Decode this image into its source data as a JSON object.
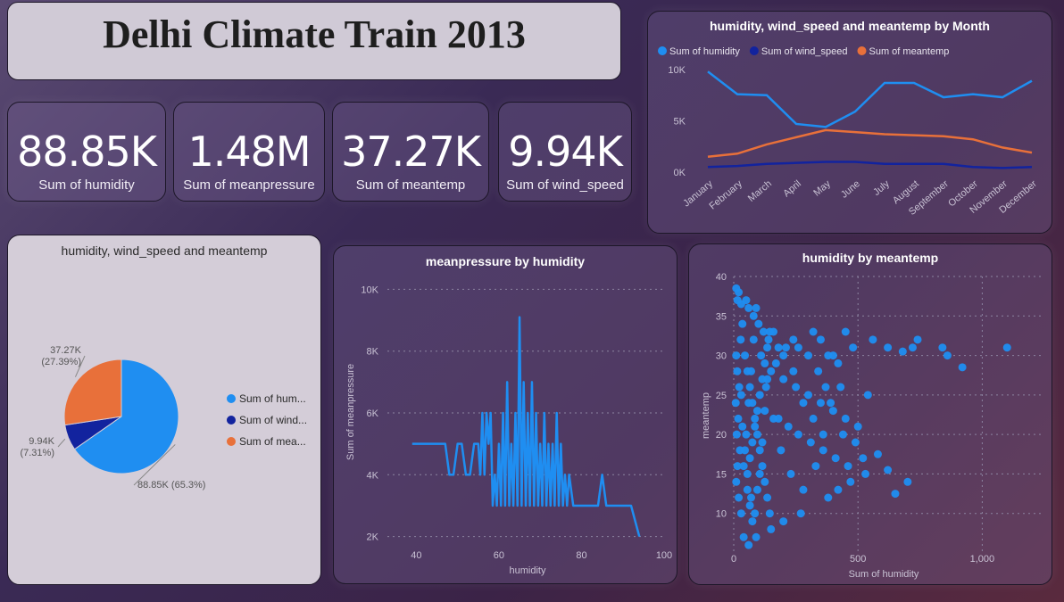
{
  "dashboard": {
    "title": "Delhi Climate Train 2013"
  },
  "kpis": [
    {
      "value": "88.85K",
      "label": "Sum of humidity"
    },
    {
      "value": "1.48M",
      "label": "Sum of meanpressure"
    },
    {
      "value": "37.27K",
      "label": "Sum of meantemp"
    },
    {
      "value": "9.94K",
      "label": "Sum of wind_speed"
    }
  ],
  "colors": {
    "humidity": "#1f8ef1",
    "wind_speed": "#12239e",
    "meantemp": "#e8703a"
  },
  "chart_data": [
    {
      "type": "line",
      "title": "humidity, wind_speed and meantemp by Month",
      "categories": [
        "January",
        "February",
        "March",
        "April",
        "May",
        "June",
        "July",
        "August",
        "September",
        "October",
        "November",
        "December"
      ],
      "series": [
        {
          "name": "Sum of humidity",
          "values": [
            9800,
            7600,
            7500,
            4700,
            4400,
            5900,
            8700,
            8700,
            7300,
            7600,
            7300,
            8900
          ]
        },
        {
          "name": "Sum of wind_speed",
          "values": [
            500,
            600,
            800,
            900,
            1000,
            1000,
            800,
            800,
            800,
            500,
            400,
            500
          ]
        },
        {
          "name": "Sum of meantemp",
          "values": [
            1500,
            1800,
            2700,
            3400,
            4100,
            3900,
            3700,
            3600,
            3500,
            3200,
            2400,
            1900
          ]
        }
      ],
      "yticks": [
        "0K",
        "5K",
        "10K"
      ],
      "ylim": [
        0,
        10000
      ]
    },
    {
      "type": "pie",
      "title": "humidity, wind_speed and meantemp",
      "slices": [
        {
          "name": "Sum of hum...",
          "value": 88.85,
          "label": "88.85K (65.3%)"
        },
        {
          "name": "Sum of wind...",
          "value": 9.94,
          "label": "9.94K (7.31%)"
        },
        {
          "name": "Sum of mea...",
          "value": 37.27,
          "label": "37.27K (27.39%)"
        }
      ]
    },
    {
      "type": "line",
      "title": "meanpressure by humidity",
      "xlabel": "humidity",
      "ylabel": "Sum of meanpressure",
      "xlim": [
        33,
        100
      ],
      "ylim": [
        1700,
        10300
      ],
      "xticks": [
        "40",
        "60",
        "80",
        "100"
      ],
      "yticks": [
        "2K",
        "4K",
        "6K",
        "8K",
        "10K"
      ],
      "x": [
        39,
        47,
        48,
        49,
        50,
        51,
        52,
        53,
        54,
        55,
        55.5,
        56,
        56.5,
        57,
        57.5,
        58,
        58.5,
        59,
        59.5,
        60,
        60.5,
        61,
        61.5,
        62,
        62.5,
        63,
        63.5,
        64,
        64.5,
        65,
        65.5,
        66,
        66.5,
        67,
        67.5,
        68,
        68.5,
        69,
        69.5,
        70,
        70.5,
        71,
        71.5,
        72,
        72.5,
        73,
        73.5,
        74,
        74.5,
        75,
        75.5,
        76,
        76.5,
        77,
        78,
        79,
        80,
        84,
        85,
        86,
        91,
        92,
        93,
        94
      ],
      "y": [
        5000,
        5000,
        4000,
        4000,
        5000,
        5000,
        4000,
        4000,
        5000,
        5000,
        4000,
        6000,
        4000,
        6000,
        5000,
        6000,
        3000,
        4000,
        3000,
        5000,
        3000,
        6000,
        3000,
        7000,
        3000,
        5000,
        3000,
        6000,
        3000,
        9100,
        3000,
        7000,
        3000,
        6000,
        3000,
        7000,
        3000,
        6000,
        3000,
        5000,
        3000,
        6000,
        3000,
        5000,
        3000,
        5000,
        3000,
        6000,
        3000,
        5000,
        3000,
        4000,
        3000,
        4000,
        3000,
        3000,
        3000,
        3000,
        4000,
        3000,
        3000,
        3000,
        2500,
        2000
      ]
    },
    {
      "type": "scatter",
      "title": "humidity by meantemp",
      "xlabel": "Sum of humidity",
      "ylabel": "meantemp",
      "xlim": [
        0,
        1250
      ],
      "ylim": [
        5,
        40
      ],
      "xticks": [
        "0",
        "500",
        "1,000"
      ],
      "yticks": [
        "10",
        "15",
        "20",
        "25",
        "30",
        "35",
        "40"
      ],
      "points": [
        [
          10,
          38.5
        ],
        [
          20,
          38
        ],
        [
          15,
          37
        ],
        [
          30,
          36.5
        ],
        [
          50,
          37
        ],
        [
          60,
          36
        ],
        [
          80,
          35
        ],
        [
          100,
          34
        ],
        [
          120,
          33
        ],
        [
          140,
          32
        ],
        [
          160,
          33
        ],
        [
          180,
          31
        ],
        [
          200,
          30
        ],
        [
          240,
          32
        ],
        [
          260,
          31
        ],
        [
          300,
          30
        ],
        [
          320,
          33
        ],
        [
          350,
          32
        ],
        [
          380,
          30
        ],
        [
          420,
          29
        ],
        [
          450,
          33
        ],
        [
          480,
          31
        ],
        [
          560,
          32
        ],
        [
          620,
          31
        ],
        [
          680,
          30.5
        ],
        [
          720,
          31
        ],
        [
          740,
          32
        ],
        [
          840,
          31
        ],
        [
          860,
          30
        ],
        [
          920,
          28.5
        ],
        [
          1100,
          31
        ],
        [
          150,
          28
        ],
        [
          200,
          27
        ],
        [
          250,
          26
        ],
        [
          300,
          25
        ],
        [
          350,
          24
        ],
        [
          400,
          23
        ],
        [
          450,
          22
        ],
        [
          500,
          21
        ],
        [
          180,
          22
        ],
        [
          220,
          21
        ],
        [
          260,
          20
        ],
        [
          310,
          19
        ],
        [
          360,
          18
        ],
        [
          410,
          17
        ],
        [
          460,
          16
        ],
        [
          520,
          17
        ],
        [
          580,
          17.5
        ],
        [
          620,
          15.5
        ],
        [
          700,
          14
        ],
        [
          650,
          12.5
        ],
        [
          530,
          15
        ],
        [
          470,
          14
        ],
        [
          420,
          13
        ],
        [
          380,
          12
        ],
        [
          270,
          10
        ],
        [
          200,
          9
        ],
        [
          150,
          8
        ],
        [
          90,
          7
        ],
        [
          60,
          6
        ],
        [
          40,
          7
        ],
        [
          30,
          10
        ],
        [
          20,
          12
        ],
        [
          10,
          14
        ],
        [
          15,
          16
        ],
        [
          25,
          18
        ],
        [
          12,
          20
        ],
        [
          18,
          22
        ],
        [
          8,
          24
        ],
        [
          22,
          26
        ],
        [
          14,
          28
        ],
        [
          10,
          30
        ],
        [
          28,
          32
        ],
        [
          35,
          34
        ],
        [
          45,
          30
        ],
        [
          55,
          28
        ],
        [
          65,
          26
        ],
        [
          75,
          24
        ],
        [
          85,
          22
        ],
        [
          95,
          20
        ],
        [
          105,
          18
        ],
        [
          115,
          16
        ],
        [
          125,
          14
        ],
        [
          135,
          12
        ],
        [
          145,
          10
        ],
        [
          55,
          15
        ],
        [
          65,
          17
        ],
        [
          75,
          19
        ],
        [
          85,
          21
        ],
        [
          95,
          23
        ],
        [
          105,
          25
        ],
        [
          115,
          27
        ],
        [
          125,
          29
        ],
        [
          135,
          31
        ],
        [
          145,
          33
        ],
        [
          70,
          12
        ],
        [
          40,
          16
        ],
        [
          50,
          20
        ],
        [
          60,
          24
        ],
        [
          70,
          28
        ],
        [
          80,
          32
        ],
        [
          90,
          36
        ],
        [
          110,
          30
        ],
        [
          130,
          26
        ],
        [
          160,
          22
        ],
        [
          190,
          18
        ],
        [
          230,
          15
        ],
        [
          280,
          13
        ],
        [
          330,
          16
        ],
        [
          360,
          20
        ],
        [
          390,
          24
        ],
        [
          430,
          26
        ],
        [
          30,
          25
        ],
        [
          35,
          21
        ],
        [
          45,
          18
        ],
        [
          55,
          13
        ],
        [
          65,
          11
        ],
        [
          75,
          9
        ],
        [
          85,
          10
        ],
        [
          95,
          13
        ],
        [
          105,
          15
        ],
        [
          115,
          19
        ],
        [
          125,
          23
        ],
        [
          135,
          27
        ],
        [
          170,
          29
        ],
        [
          210,
          31
        ],
        [
          240,
          28
        ],
        [
          280,
          24
        ],
        [
          320,
          22
        ],
        [
          340,
          28
        ],
        [
          370,
          26
        ],
        [
          400,
          30
        ],
        [
          440,
          20
        ],
        [
          490,
          19
        ],
        [
          540,
          25
        ]
      ]
    }
  ]
}
